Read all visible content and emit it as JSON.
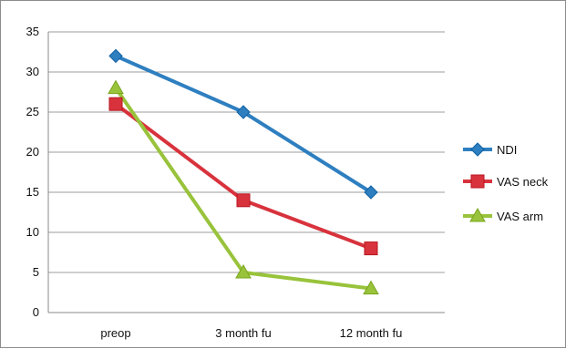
{
  "chart_data": {
    "type": "line",
    "categories": [
      "preop",
      "3 month fu",
      "12 month fu"
    ],
    "series": [
      {
        "name": "NDI",
        "values": [
          32,
          25,
          15
        ],
        "color": "#2e7fc0",
        "marker": "diamond"
      },
      {
        "name": "VAS neck",
        "values": [
          26,
          14,
          8
        ],
        "color": "#d8333d",
        "marker": "square"
      },
      {
        "name": "VAS arm",
        "values": [
          28,
          5,
          3
        ],
        "color": "#98c33b",
        "marker": "triangle"
      }
    ],
    "y_ticks": [
      "0",
      "5",
      "10",
      "15",
      "20",
      "25",
      "30",
      "35"
    ],
    "ylim": [
      0,
      35
    ],
    "grid": true,
    "legend_position": "right"
  }
}
